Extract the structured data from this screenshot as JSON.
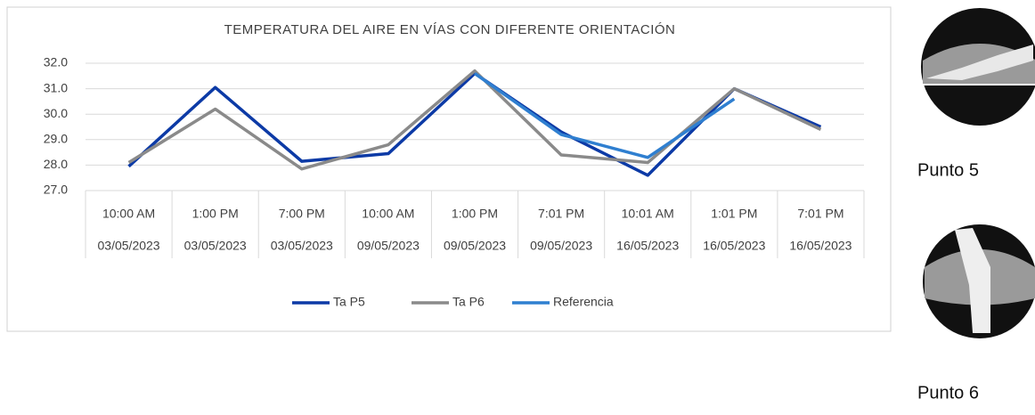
{
  "chart_data": {
    "type": "line",
    "title": "TEMPERATURA DEL AIRE EN VÍAS CON DIFERENTE ORIENTACIÓN",
    "categories": [
      [
        "10:00 AM",
        "03/05/2023"
      ],
      [
        "1:00 PM",
        "03/05/2023"
      ],
      [
        "7:00 PM",
        "03/05/2023"
      ],
      [
        "10:00 AM",
        "09/05/2023"
      ],
      [
        "1:00 PM",
        "09/05/2023"
      ],
      [
        "7:01 PM",
        "09/05/2023"
      ],
      [
        "10:01 AM",
        "16/05/2023"
      ],
      [
        "1:01 PM",
        "16/05/2023"
      ],
      [
        "7:01 PM",
        "16/05/2023"
      ]
    ],
    "series": [
      {
        "name": "Ta P5",
        "color": "#0c3aa6",
        "values": [
          27.95,
          31.05,
          28.15,
          28.45,
          31.6,
          29.3,
          27.6,
          31.0,
          29.5
        ]
      },
      {
        "name": "Ta P6",
        "color": "#8a8a8a",
        "values": [
          28.1,
          30.2,
          27.85,
          28.8,
          31.7,
          28.4,
          28.1,
          31.0,
          29.4
        ]
      },
      {
        "name": "Referencia",
        "color": "#2f7fd0",
        "values": [
          null,
          null,
          null,
          null,
          31.6,
          29.2,
          28.3,
          30.6,
          null
        ]
      }
    ],
    "ylim": [
      27,
      32
    ],
    "yticks": [
      {
        "value": 27,
        "label": "27.0"
      },
      {
        "value": 28,
        "label": "28.0"
      },
      {
        "value": 29,
        "label": "29.0"
      },
      {
        "value": 30,
        "label": "30.0"
      },
      {
        "value": 31,
        "label": "31.0"
      },
      {
        "value": 32,
        "label": "32.0"
      }
    ],
    "grid": true,
    "legend": "bottom"
  },
  "side_panels": [
    {
      "label": "Punto 5"
    },
    {
      "label": "Punto 6"
    }
  ]
}
